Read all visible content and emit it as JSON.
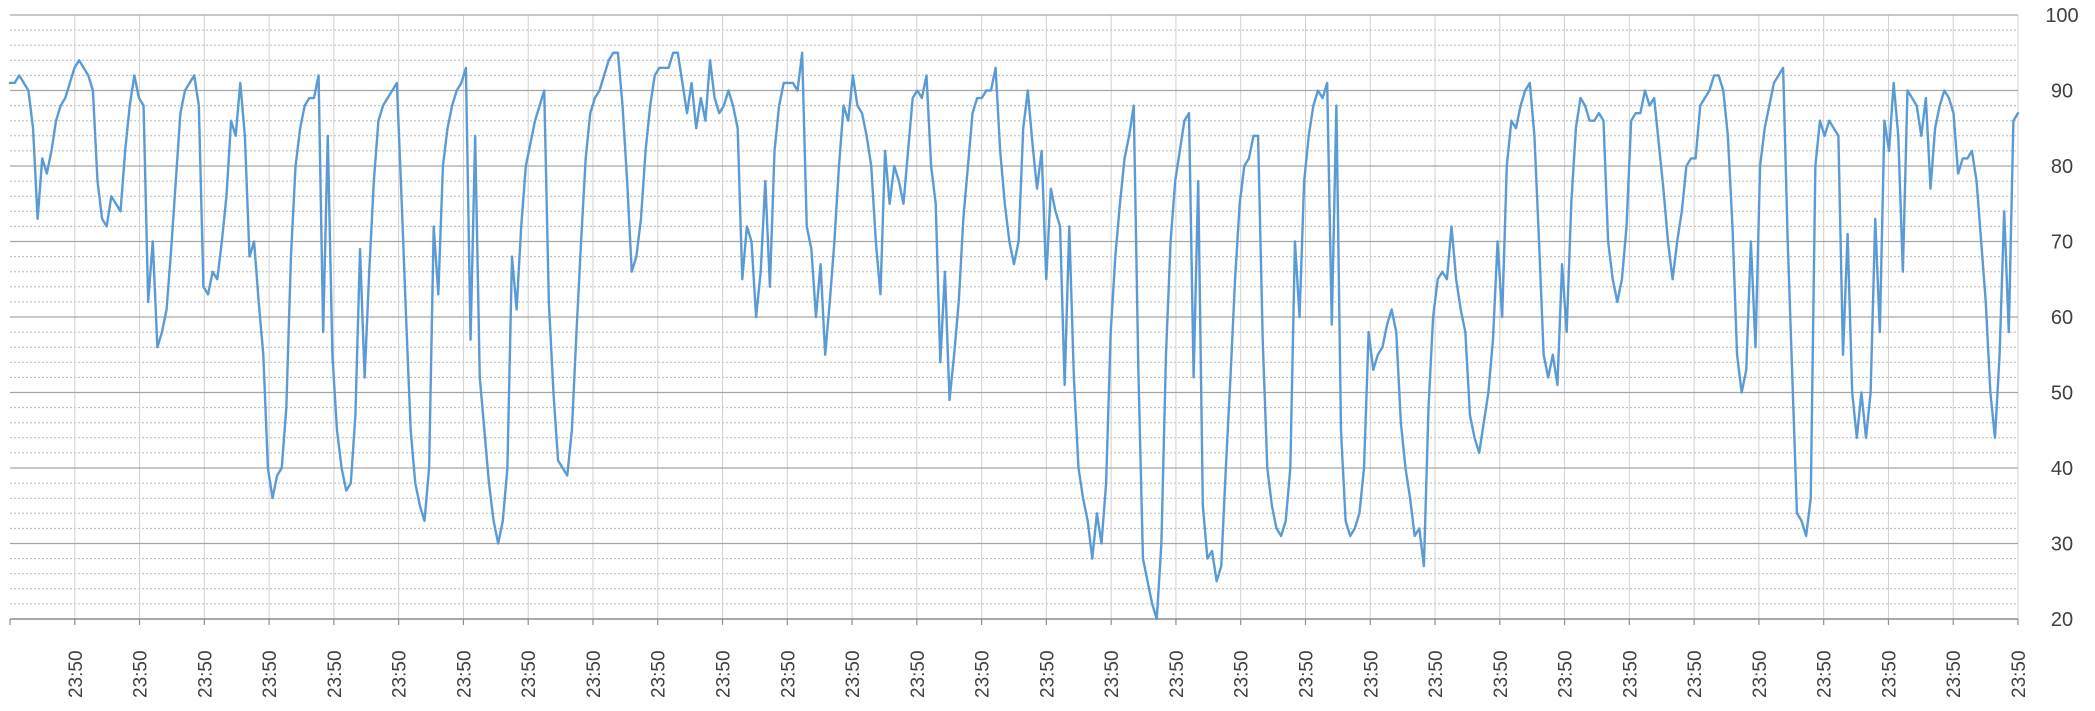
{
  "chart_data": {
    "type": "line",
    "title": "",
    "xlabel": "",
    "ylabel": "",
    "ylim": [
      20,
      100
    ],
    "y_ticks": [
      20,
      30,
      40,
      50,
      60,
      70,
      80,
      90,
      100
    ],
    "y_axis_side": "right",
    "grid": {
      "major": true,
      "minor": true,
      "vertical": true
    },
    "x_tick_labels": [
      "23:50",
      "23:50",
      "23:50",
      "23:50",
      "23:50",
      "23:50",
      "23:50",
      "23:50",
      "23:50",
      "23:50",
      "23:50",
      "23:50",
      "23:50",
      "23:50",
      "23:50",
      "23:50",
      "23:50",
      "23:50",
      "23:50",
      "23:50",
      "23:50",
      "23:50",
      "23:50",
      "23:50",
      "23:50",
      "23:50",
      "23:50",
      "23:50",
      "23:50",
      "23:50",
      "23:50"
    ],
    "series_color": "#5B9BD5",
    "series": [
      {
        "values": [
          91,
          91,
          92,
          91,
          90,
          85,
          73,
          81,
          79,
          82,
          86,
          88,
          89,
          91,
          93,
          94,
          93,
          92,
          90,
          78,
          73,
          72,
          76,
          75,
          74,
          82,
          88,
          92,
          89,
          88,
          62,
          70,
          56,
          58,
          61,
          69,
          78,
          87,
          90,
          91,
          92,
          88,
          64,
          63,
          66,
          65,
          70,
          76,
          86,
          84,
          91,
          84,
          68,
          70,
          62,
          55,
          40,
          36,
          39,
          40,
          48,
          68,
          80,
          85,
          88,
          89,
          89,
          92,
          58,
          84,
          55,
          45,
          40,
          37,
          38,
          47,
          69,
          52,
          66,
          78,
          86,
          88,
          89,
          90,
          91,
          76,
          60,
          45,
          38,
          35,
          33,
          40,
          72,
          63,
          80,
          85,
          88,
          90,
          91,
          93,
          57,
          84,
          52,
          45,
          38,
          33,
          30,
          33,
          40,
          68,
          61,
          72,
          80,
          83,
          86,
          88,
          90,
          62,
          50,
          41,
          40,
          39,
          45,
          58,
          70,
          81,
          87,
          89,
          90,
          92,
          94,
          95,
          95,
          88,
          78,
          66,
          68,
          73,
          82,
          88,
          92,
          93,
          93,
          93,
          95,
          95,
          91,
          87,
          91,
          85,
          89,
          86,
          94,
          89,
          87,
          88,
          90,
          88,
          85,
          65,
          72,
          70,
          60,
          66,
          78,
          64,
          82,
          88,
          91,
          91,
          91,
          90,
          95,
          72,
          69,
          60,
          67,
          55,
          62,
          70,
          80,
          88,
          86,
          92,
          88,
          87,
          84,
          80,
          70,
          63,
          82,
          75,
          80,
          78,
          75,
          82,
          89,
          90,
          89,
          92,
          80,
          75,
          54,
          66,
          49,
          55,
          62,
          73,
          80,
          87,
          89,
          89,
          90,
          90,
          93,
          82,
          75,
          70,
          67,
          70,
          85,
          90,
          83,
          77,
          82,
          65,
          77,
          74,
          72,
          51,
          72,
          52,
          40,
          36,
          33,
          28,
          34,
          30,
          38,
          58,
          68,
          75,
          81,
          84,
          88,
          53,
          28,
          25,
          22,
          20,
          30,
          55,
          70,
          78,
          82,
          86,
          87,
          52,
          78,
          35,
          28,
          29,
          25,
          27,
          40,
          52,
          65,
          75,
          80,
          81,
          84,
          84,
          57,
          40,
          35,
          32,
          31,
          33,
          40,
          70,
          60,
          78,
          84,
          88,
          90,
          89,
          91,
          59,
          88,
          45,
          33,
          31,
          32,
          34,
          40,
          58,
          53,
          55,
          56,
          59,
          61,
          58,
          46,
          40,
          36,
          31,
          32,
          27,
          48,
          60,
          65,
          66,
          65,
          72,
          65,
          61,
          58,
          47,
          44,
          42,
          46,
          50,
          57,
          70,
          60,
          80,
          86,
          85,
          88,
          90,
          91,
          84,
          70,
          55,
          52,
          55,
          51,
          67,
          58,
          75,
          85,
          89,
          88,
          86,
          86,
          87,
          86,
          70,
          65,
          62,
          65,
          72,
          86,
          87,
          87,
          90,
          88,
          89,
          83,
          77,
          70,
          65,
          70,
          74,
          80,
          81,
          81,
          88,
          89,
          90,
          92,
          92,
          90,
          84,
          72,
          55,
          50,
          53,
          70,
          56,
          80,
          85,
          88,
          91,
          92,
          93,
          70,
          52,
          34,
          33,
          31,
          36,
          80,
          86,
          84,
          86,
          85,
          84,
          55,
          71,
          50,
          44,
          50,
          44,
          50,
          73,
          58,
          86,
          82,
          91,
          84,
          66,
          90,
          89,
          88,
          84,
          89,
          77,
          85,
          88,
          90,
          89,
          87,
          79,
          81,
          81,
          82,
          78,
          70,
          62,
          50,
          44,
          55,
          74,
          58,
          86,
          87
        ]
      }
    ]
  }
}
